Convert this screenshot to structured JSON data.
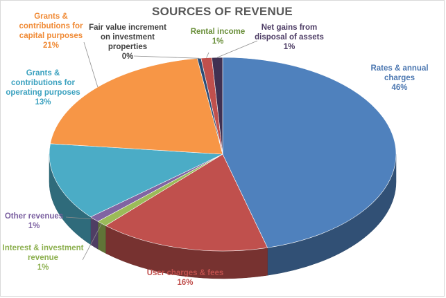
{
  "chart_data": {
    "type": "pie",
    "title": "SOURCES OF REVENUE",
    "three_d": true,
    "slices": [
      {
        "label": "Rates & annual charges",
        "value": 46,
        "pct": "46%",
        "color": "#4f81bd"
      },
      {
        "label": "User charges & fees",
        "value": 16,
        "pct": "16%",
        "color": "#c0504d"
      },
      {
        "label": "Interest & investment revenue",
        "value": 1,
        "pct": "1%",
        "color": "#9bbb59"
      },
      {
        "label": "Other revenues",
        "value": 1,
        "pct": "1%",
        "color": "#8064a2"
      },
      {
        "label": "Grants & contributions for operating purposes",
        "value": 13,
        "pct": "13%",
        "color": "#4bacc6"
      },
      {
        "label": "Grants & contributions for capital purposes",
        "value": 21,
        "pct": "21%",
        "color": "#f79646"
      },
      {
        "label": "Fair value increment on investment properties",
        "value": 0,
        "pct": "0%",
        "color": "#2c4d75"
      },
      {
        "label": "Rental income",
        "value": 1,
        "pct": "1%",
        "color": "#c0504d"
      },
      {
        "label": "Net gains from disposal of assets",
        "value": 1,
        "pct": "1%",
        "color": "#403152"
      }
    ]
  }
}
